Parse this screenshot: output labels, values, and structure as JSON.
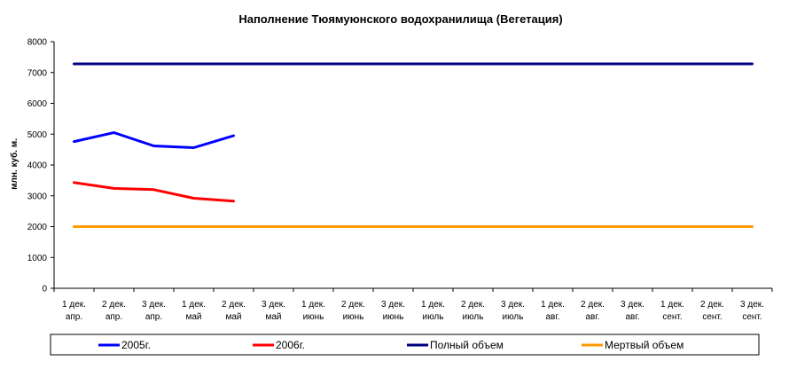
{
  "chart_data": {
    "type": "line",
    "title": "Наполнение Тюямуюнского водохранилища (Вегетация)",
    "xlabel": "",
    "ylabel": "млн. куб. м.",
    "ylim": [
      0,
      8000
    ],
    "yticks": [
      0,
      1000,
      2000,
      3000,
      4000,
      5000,
      6000,
      7000,
      8000
    ],
    "grid": false,
    "legend_position": "bottom",
    "categories": [
      [
        "1 дек.",
        "апр."
      ],
      [
        "2 дек.",
        "апр."
      ],
      [
        "3 дек.",
        "апр."
      ],
      [
        "1 дек.",
        "май"
      ],
      [
        "2 дек.",
        "май"
      ],
      [
        "3 дек.",
        "май"
      ],
      [
        "1 дек.",
        "июнь"
      ],
      [
        "2 дек.",
        "июнь"
      ],
      [
        "3 дек.",
        "июнь"
      ],
      [
        "1 дек.",
        "июль"
      ],
      [
        "2 дек.",
        "июль"
      ],
      [
        "3 дек.",
        "июль"
      ],
      [
        "1 дек.",
        "авг."
      ],
      [
        "2 дек.",
        "авг."
      ],
      [
        "3 дек.",
        "авг."
      ],
      [
        "1 дек.",
        "сент."
      ],
      [
        "2 дек.",
        "сент."
      ],
      [
        "3 дек.",
        "сент."
      ]
    ],
    "series": [
      {
        "name": "2005г.",
        "color": "#0000ff",
        "values": [
          4760,
          5050,
          4620,
          4560,
          4950,
          null,
          null,
          null,
          null,
          null,
          null,
          null,
          null,
          null,
          null,
          null,
          null,
          null
        ]
      },
      {
        "name": "2006г.",
        "color": "#ff0000",
        "values": [
          3430,
          3240,
          3200,
          2920,
          2830,
          null,
          null,
          null,
          null,
          null,
          null,
          null,
          null,
          null,
          null,
          null,
          null,
          null
        ]
      },
      {
        "name": "Полный объем",
        "color": "#000080",
        "values": [
          7280,
          7280,
          7280,
          7280,
          7280,
          7280,
          7280,
          7280,
          7280,
          7280,
          7280,
          7280,
          7280,
          7280,
          7280,
          7280,
          7280,
          7280
        ]
      },
      {
        "name": "Мертвый объем",
        "color": "#ff9900",
        "values": [
          2000,
          2000,
          2000,
          2000,
          2000,
          2000,
          2000,
          2000,
          2000,
          2000,
          2000,
          2000,
          2000,
          2000,
          2000,
          2000,
          2000,
          2000
        ]
      }
    ]
  }
}
